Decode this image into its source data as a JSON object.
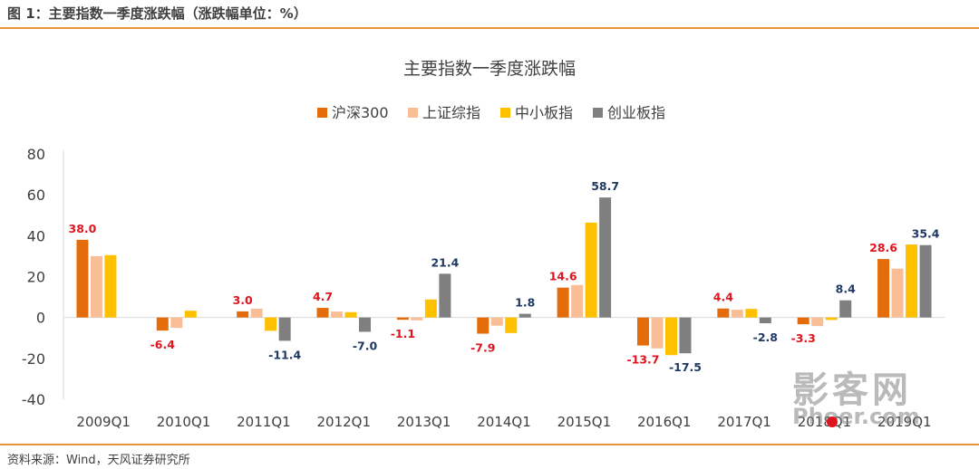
{
  "header": {
    "figure_title": "图 1：主要指数一季度涨跌幅（涨跌幅单位：%）"
  },
  "footer": {
    "source": "资料来源：Wind，天风证券研究所"
  },
  "watermark": {
    "cn_text": "影客网",
    "en_text": "Phoer.com"
  },
  "chart_data": {
    "type": "bar",
    "title": "主要指数一季度涨跌幅",
    "xlabel": "",
    "ylabel": "",
    "ylim": [
      -40,
      80
    ],
    "yticks": [
      -40,
      -20,
      0,
      20,
      40,
      60,
      80
    ],
    "grid": false,
    "legend_position": "top",
    "categories": [
      "2009Q1",
      "2010Q1",
      "2011Q1",
      "2012Q1",
      "2013Q1",
      "2014Q1",
      "2015Q1",
      "2016Q1",
      "2017Q1",
      "2018Q1",
      "2019Q1"
    ],
    "series": [
      {
        "name": "沪深300",
        "color": "#E46C0A",
        "values": [
          38.0,
          -6.4,
          3.0,
          4.7,
          -1.1,
          -7.9,
          14.6,
          -13.7,
          4.4,
          -3.3,
          28.6
        ]
      },
      {
        "name": "上证综指",
        "color": "#F9BE96",
        "values": [
          30.0,
          -5.1,
          4.3,
          2.9,
          -1.4,
          -4.0,
          15.9,
          -15.1,
          3.8,
          -4.2,
          23.9
        ]
      },
      {
        "name": "中小板指",
        "color": "#FFC000",
        "values": [
          30.5,
          3.3,
          -6.5,
          2.6,
          8.8,
          -7.6,
          46.4,
          -18.4,
          4.2,
          -1.2,
          35.7
        ]
      },
      {
        "name": "创业板指",
        "color": "#7F7F7F",
        "values": [
          null,
          null,
          -11.4,
          -7.0,
          21.4,
          1.8,
          58.7,
          -17.5,
          -2.8,
          8.4,
          35.4
        ]
      }
    ],
    "data_labels": [
      {
        "series": 0,
        "category": 0,
        "text": "38.0",
        "color": "#E0141E"
      },
      {
        "series": 0,
        "category": 1,
        "text": "-6.4",
        "color": "#E0141E"
      },
      {
        "series": 0,
        "category": 2,
        "text": "3.0",
        "color": "#E0141E"
      },
      {
        "series": 3,
        "category": 2,
        "text": "-11.4",
        "color": "#1F3864"
      },
      {
        "series": 0,
        "category": 3,
        "text": "4.7",
        "color": "#E0141E"
      },
      {
        "series": 3,
        "category": 3,
        "text": "-7.0",
        "color": "#1F3864"
      },
      {
        "series": 0,
        "category": 4,
        "text": "-1.1",
        "color": "#E0141E"
      },
      {
        "series": 3,
        "category": 4,
        "text": "21.4",
        "color": "#1F3864"
      },
      {
        "series": 0,
        "category": 5,
        "text": "-7.9",
        "color": "#E0141E"
      },
      {
        "series": 3,
        "category": 5,
        "text": "1.8",
        "color": "#1F3864"
      },
      {
        "series": 0,
        "category": 6,
        "text": "14.6",
        "color": "#E0141E"
      },
      {
        "series": 3,
        "category": 6,
        "text": "58.7",
        "color": "#1F3864"
      },
      {
        "series": 0,
        "category": 7,
        "text": "-13.7",
        "color": "#E0141E"
      },
      {
        "series": 3,
        "category": 7,
        "text": "-17.5",
        "color": "#1F3864"
      },
      {
        "series": 0,
        "category": 8,
        "text": "4.4",
        "color": "#E0141E"
      },
      {
        "series": 3,
        "category": 8,
        "text": "-2.8",
        "color": "#1F3864"
      },
      {
        "series": 0,
        "category": 9,
        "text": "-3.3",
        "color": "#E0141E"
      },
      {
        "series": 3,
        "category": 9,
        "text": "8.4",
        "color": "#1F3864"
      },
      {
        "series": 0,
        "category": 10,
        "text": "28.6",
        "color": "#E0141E"
      },
      {
        "series": 3,
        "category": 10,
        "text": "35.4",
        "color": "#1F3864"
      }
    ]
  }
}
